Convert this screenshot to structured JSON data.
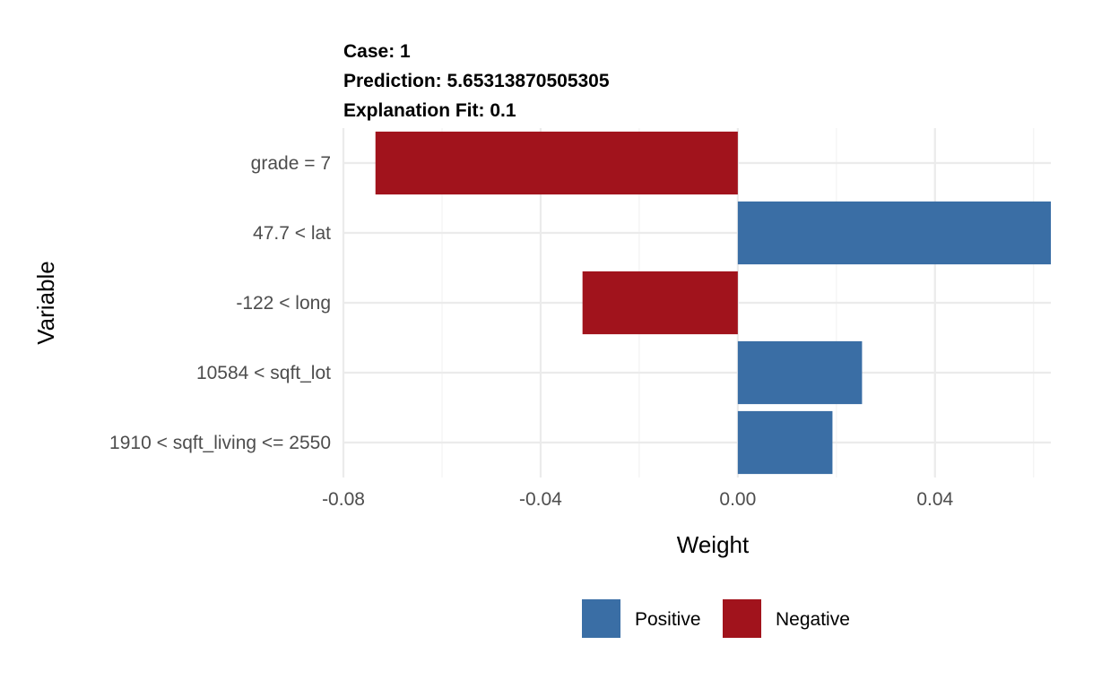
{
  "chart_data": {
    "type": "bar",
    "orientation": "horizontal",
    "title_lines": [
      "Case: 1",
      "Prediction: 5.65313870505305",
      "Explanation Fit: 0.1"
    ],
    "xlabel": "Weight",
    "ylabel": "Variable",
    "categories": [
      "grade = 7",
      "47.7 < lat",
      "-122 < long",
      "10584 < sqft_lot",
      "1910 < sqft_living <= 2550"
    ],
    "values": [
      -0.0735,
      0.0635,
      -0.0315,
      0.0252,
      0.0192
    ],
    "x_ticks": [
      -0.08,
      -0.04,
      0.0,
      0.04
    ],
    "x_tick_labels": [
      "-0.08",
      "-0.04",
      "0.00",
      "0.04"
    ],
    "xlim": [
      -0.08,
      0.0635
    ],
    "grid": true,
    "legend": {
      "placement": "bottom",
      "items": [
        {
          "label": "Positive",
          "color": "#3a6ea5"
        },
        {
          "label": "Negative",
          "color": "#a1131c"
        }
      ]
    },
    "colors": {
      "positive": "#3a6ea5",
      "negative": "#a1131c"
    }
  }
}
